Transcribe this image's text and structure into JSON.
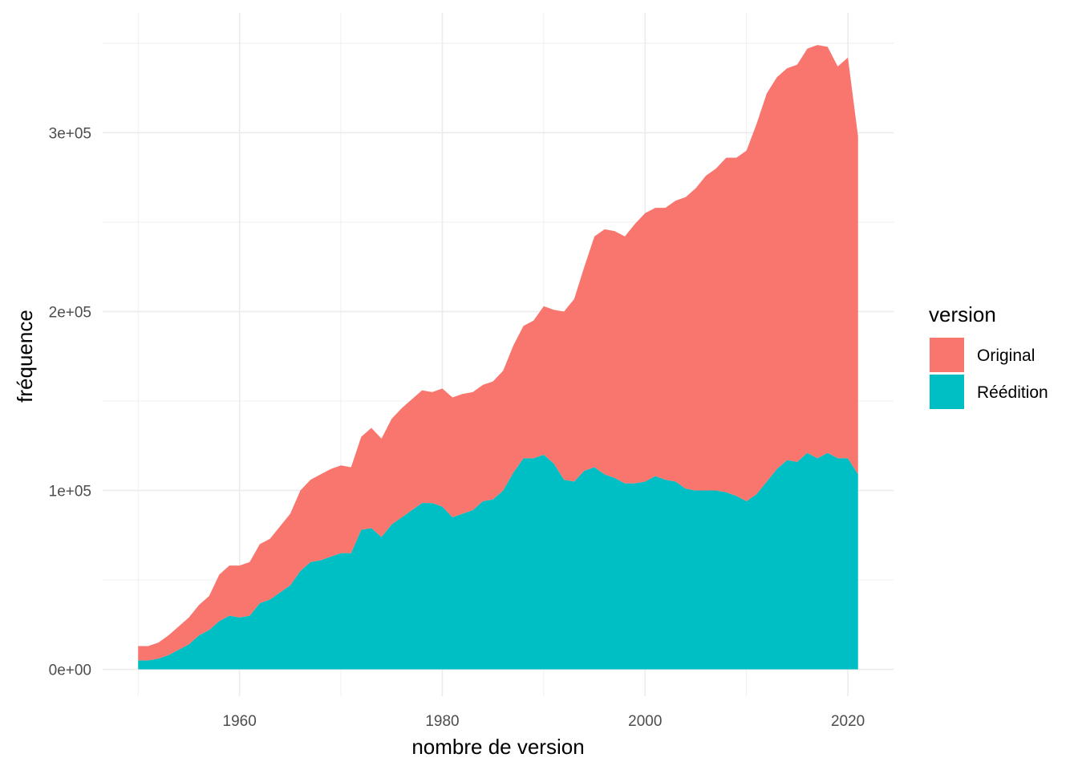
{
  "chart_data": {
    "type": "area",
    "stacked": true,
    "title": "",
    "xlabel": "nombre de version",
    "ylabel": "fréquence",
    "xlim": [
      1946.5,
      2024.5
    ],
    "ylim": [
      -15000,
      367000
    ],
    "x_ticks": [
      1960,
      1980,
      2000,
      2020
    ],
    "x_tick_labels": [
      "1960",
      "1980",
      "2000",
      "2020"
    ],
    "y_ticks": [
      0,
      100000,
      200000,
      300000
    ],
    "y_tick_labels": [
      "0e+00",
      "1e+05",
      "2e+05",
      "3e+05"
    ],
    "grid": true,
    "legend": {
      "title": "version",
      "position": "right",
      "entries": [
        "Original",
        "Réédition"
      ]
    },
    "x": [
      1950,
      1951,
      1952,
      1953,
      1954,
      1955,
      1956,
      1957,
      1958,
      1959,
      1960,
      1961,
      1962,
      1963,
      1964,
      1965,
      1966,
      1967,
      1968,
      1969,
      1970,
      1971,
      1972,
      1973,
      1974,
      1975,
      1976,
      1977,
      1978,
      1979,
      1980,
      1981,
      1982,
      1983,
      1984,
      1985,
      1986,
      1987,
      1988,
      1989,
      1990,
      1991,
      1992,
      1993,
      1994,
      1995,
      1996,
      1997,
      1998,
      1999,
      2000,
      2001,
      2002,
      2003,
      2004,
      2005,
      2006,
      2007,
      2008,
      2009,
      2010,
      2011,
      2012,
      2013,
      2014,
      2015,
      2016,
      2017,
      2018,
      2019,
      2020,
      2021
    ],
    "series": [
      {
        "name": "Réédition",
        "color": "#00BFC4",
        "values": [
          5000,
          5000,
          6000,
          8000,
          11000,
          14000,
          19000,
          22000,
          27000,
          30000,
          29000,
          30000,
          37000,
          39000,
          43000,
          47000,
          55000,
          60000,
          61000,
          63000,
          65000,
          65000,
          78000,
          79000,
          74000,
          81000,
          85000,
          89000,
          93000,
          93000,
          91000,
          85000,
          87000,
          89000,
          94000,
          95000,
          100000,
          110000,
          118000,
          118000,
          120000,
          115000,
          106000,
          105000,
          111000,
          113000,
          109000,
          107000,
          104000,
          104000,
          105000,
          108000,
          106000,
          105000,
          101000,
          100000,
          100000,
          100000,
          99000,
          97000,
          94000,
          98000,
          105000,
          112000,
          117000,
          116000,
          121000,
          118000,
          121000,
          118000,
          118000,
          109000
        ]
      },
      {
        "name": "Original",
        "color": "#F8766D",
        "values": [
          8000,
          8000,
          9000,
          11000,
          13000,
          15000,
          17000,
          19000,
          26000,
          28000,
          29000,
          30000,
          33000,
          34000,
          37000,
          40000,
          45000,
          46000,
          48000,
          49000,
          49000,
          48000,
          52000,
          56000,
          55000,
          59000,
          61000,
          62000,
          63000,
          62000,
          66000,
          67000,
          67000,
          66000,
          65000,
          66000,
          67000,
          71000,
          74000,
          77000,
          83000,
          86000,
          94000,
          102000,
          114000,
          129000,
          137000,
          138000,
          138000,
          145000,
          150000,
          150000,
          152000,
          157000,
          163000,
          169000,
          176000,
          180000,
          187000,
          189000,
          196000,
          207000,
          217000,
          219000,
          219000,
          222000,
          226000,
          231000,
          227000,
          219000,
          224000,
          189000
        ]
      }
    ]
  }
}
